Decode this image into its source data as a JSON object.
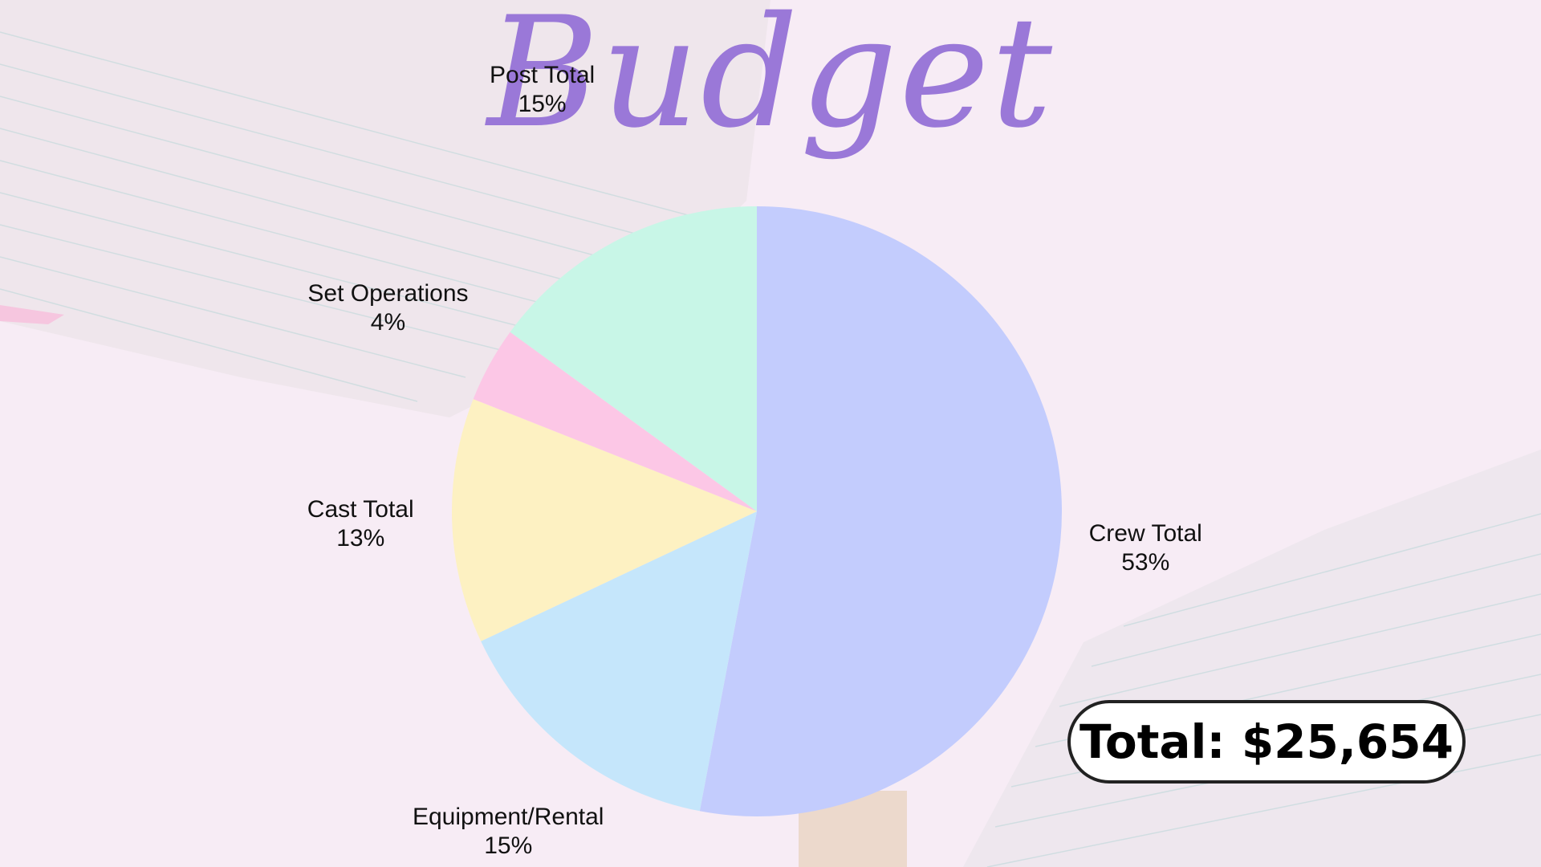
{
  "title": "Budget",
  "total_text": "Total: $25,654",
  "colors": {
    "background": "#f7ecf5",
    "title": "#9a78d8",
    "crew": "#c3ccfd",
    "equipment": "#c5e6fb",
    "cast": "#fdf1c2",
    "set_operations": "#fcc7e6",
    "post": "#c8f6e7"
  },
  "chart_data": {
    "type": "pie",
    "title": "Budget",
    "start_angle_deg": 0,
    "direction": "clockwise",
    "slices": [
      {
        "name": "Crew Total",
        "value": 53,
        "label": "53%",
        "color": "#c3ccfd"
      },
      {
        "name": "Equipment/Rental",
        "value": 15,
        "label": "15%",
        "color": "#c5e6fb"
      },
      {
        "name": "Cast Total",
        "value": 13,
        "label": "13%",
        "color": "#fdf1c2"
      },
      {
        "name": "Set Operations",
        "value": 4,
        "label": "4%",
        "color": "#fcc7e6"
      },
      {
        "name": "Post Total",
        "value": 15,
        "label": "15%",
        "color": "#c8f6e7"
      }
    ]
  }
}
